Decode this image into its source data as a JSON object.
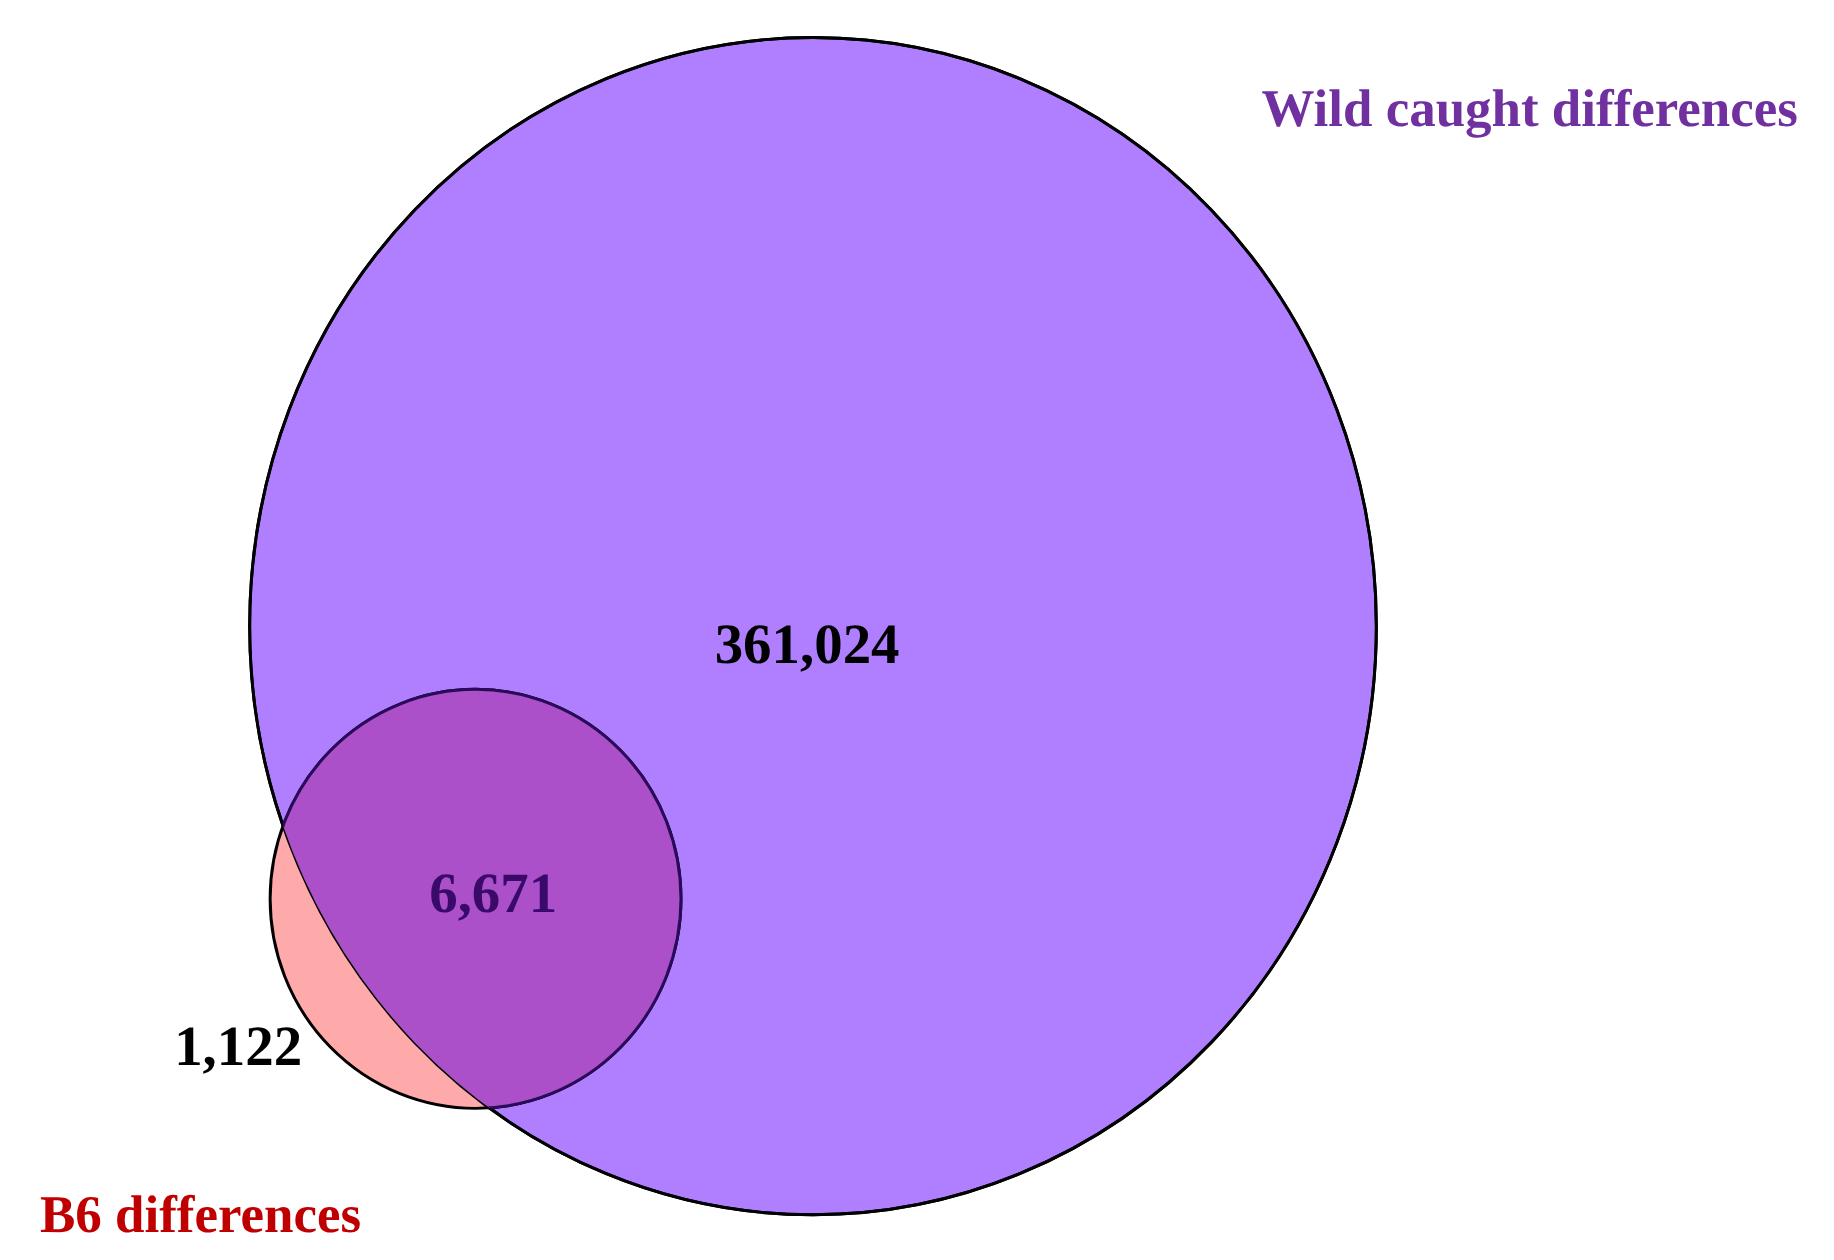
{
  "chart_data": {
    "type": "other",
    "categories": [
      null,
      null,
      null
    ],
    "values": [
      361024,
      6671,
      1122
    ],
    "colors": [
      "#b07fff",
      "#ab50c8",
      "#ffaaaa"
    ],
    "value_labels": [
      "361,024",
      "6,671",
      "1,122"
    ],
    "annotations": [
      "Wild caught differences",
      "B6 differences"
    ]
  }
}
